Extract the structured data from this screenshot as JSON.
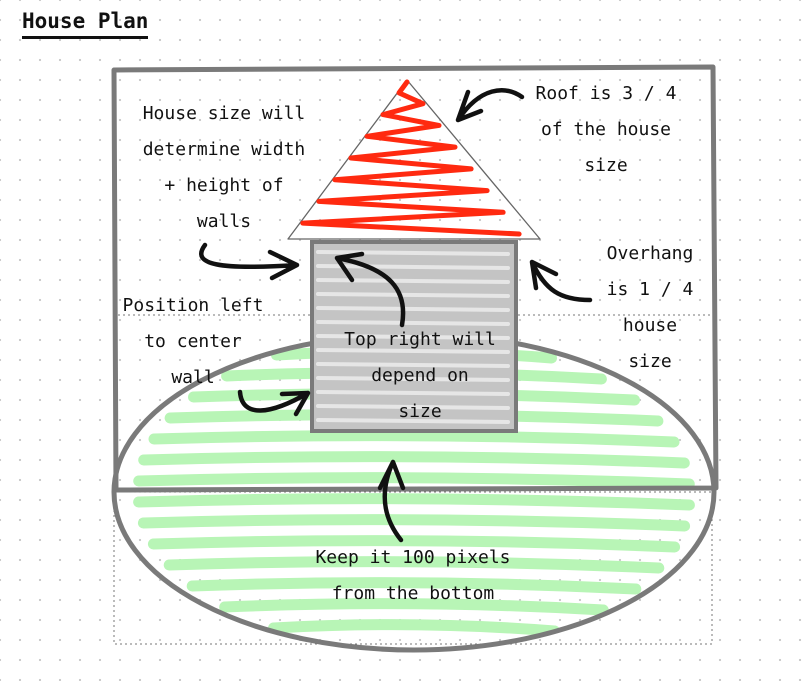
{
  "title": "House Plan",
  "labels": {
    "house_size": [
      "House size will",
      "determine width",
      "+ height of",
      "walls"
    ],
    "roof": [
      "Roof is 3 / 4",
      "of the house",
      "size"
    ],
    "overhang": [
      "Overhang",
      "is 1 / 4",
      "house",
      "size"
    ],
    "position": [
      "Position left",
      "to center",
      "wall"
    ],
    "top_right": [
      "Top right will",
      "depend on",
      "size"
    ],
    "keep": [
      "Keep it 100 pixels",
      "from the bottom"
    ]
  },
  "colors": {
    "stroke": "#111111",
    "frame": "#7a7a7a",
    "roof_scribble": "#ff2a10",
    "grass": "#b8f5b6",
    "wall_fill": "#c4c4c4",
    "wall_stripe": "#e6e6e6"
  }
}
